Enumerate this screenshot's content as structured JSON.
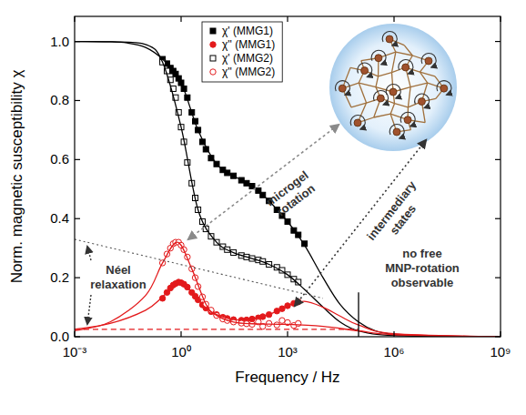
{
  "chart_data": {
    "type": "line",
    "xlabel": "Frequency / Hz",
    "ylabel": "Norm. magnetic susceptibility χ",
    "log": "x",
    "grid": false,
    "legend": "upper center",
    "xlim": [
      0.001,
      1000000000
    ],
    "ylim": [
      0,
      1.085
    ],
    "xticks": [
      {
        "value": 0.001,
        "label": "10⁻³"
      },
      {
        "value": 1,
        "label": "10⁰"
      },
      {
        "value": 1000,
        "label": "10³"
      },
      {
        "value": 1000000,
        "label": "10⁶"
      },
      {
        "value": 1000000000,
        "label": "10⁹"
      }
    ],
    "yticks": [
      {
        "value": 0,
        "label": "0.0"
      },
      0.2,
      0.4,
      0.6,
      0.8,
      {
        "value": 1,
        "label": "1.0"
      }
    ],
    "annotations": [
      {
        "lines": [
          "microgel",
          "rotation"
        ]
      },
      {
        "lines": [
          "intermediary",
          "states"
        ]
      },
      {
        "lines": [
          "Néel",
          "relaxation"
        ]
      },
      {
        "lines": [
          "no free",
          "MNP-rotation",
          "observable"
        ]
      }
    ],
    "series": [
      {
        "name": "χ' (MMG1)",
        "type": "scatter",
        "color": "#000000",
        "marker": "square",
        "x": [
          0.3,
          0.4,
          0.5,
          0.6,
          0.7,
          0.85,
          1,
          1.2,
          1.5,
          2,
          2.5,
          3,
          4,
          5,
          7,
          10,
          15,
          20,
          30,
          50,
          70,
          100,
          150,
          200,
          300,
          500,
          700,
          1000,
          1500,
          2000,
          3000
        ],
        "values": [
          0.94,
          0.925,
          0.91,
          0.9,
          0.89,
          0.875,
          0.86,
          0.84,
          0.81,
          0.76,
          0.73,
          0.7,
          0.66,
          0.635,
          0.605,
          0.585,
          0.565,
          0.555,
          0.545,
          0.53,
          0.52,
          0.51,
          0.495,
          0.48,
          0.46,
          0.43,
          0.41,
          0.39,
          0.36,
          0.345,
          0.315
        ]
      },
      {
        "name": "χ'' (MMG1)",
        "type": "scatter",
        "color": "#e31a1c",
        "marker": "circle",
        "x": [
          0.3,
          0.4,
          0.5,
          0.6,
          0.7,
          0.85,
          1,
          1.2,
          1.5,
          2,
          2.5,
          3,
          4,
          5,
          7,
          10,
          15,
          20,
          30,
          50,
          70,
          100,
          150,
          200,
          300,
          500,
          700,
          1000,
          1500,
          2000
        ],
        "values": [
          0.13,
          0.15,
          0.165,
          0.175,
          0.18,
          0.185,
          0.183,
          0.178,
          0.168,
          0.15,
          0.137,
          0.125,
          0.108,
          0.097,
          0.085,
          0.075,
          0.066,
          0.062,
          0.058,
          0.056,
          0.057,
          0.06,
          0.064,
          0.068,
          0.075,
          0.087,
          0.095,
          0.105,
          0.113,
          0.118
        ]
      },
      {
        "name": "χ' (MMG2)",
        "type": "scatter",
        "color": "#000000",
        "marker": "open-square",
        "x": [
          0.3,
          0.4,
          0.5,
          0.6,
          0.7,
          0.85,
          1,
          1.2,
          1.5,
          2,
          2.5,
          3,
          4,
          5,
          7,
          10,
          15,
          20,
          30,
          50,
          70,
          100,
          150,
          200,
          300,
          500,
          700,
          1000,
          1500,
          2000
        ],
        "values": [
          0.93,
          0.9,
          0.87,
          0.84,
          0.81,
          0.76,
          0.71,
          0.66,
          0.59,
          0.52,
          0.47,
          0.43,
          0.39,
          0.365,
          0.34,
          0.32,
          0.305,
          0.295,
          0.285,
          0.275,
          0.27,
          0.265,
          0.26,
          0.255,
          0.245,
          0.235,
          0.225,
          0.21,
          0.195,
          0.185
        ]
      },
      {
        "name": "χ'' (MMG2)",
        "type": "scatter",
        "color": "#e31a1c",
        "marker": "open-circle",
        "x": [
          0.3,
          0.4,
          0.5,
          0.6,
          0.7,
          0.85,
          1,
          1.2,
          1.5,
          2,
          2.5,
          3,
          4,
          5,
          7,
          10,
          15,
          20,
          30,
          50,
          70,
          100,
          150,
          200,
          300,
          500,
          700,
          1000,
          1500,
          2000
        ],
        "values": [
          0.25,
          0.28,
          0.3,
          0.315,
          0.32,
          0.32,
          0.31,
          0.295,
          0.27,
          0.23,
          0.2,
          0.17,
          0.135,
          0.11,
          0.09,
          0.072,
          0.06,
          0.055,
          0.05,
          0.046,
          0.044,
          0.042,
          0.05,
          0.035,
          0.045,
          0.04,
          0.055,
          0.048,
          0.038,
          0.045
        ]
      },
      {
        "type": "line",
        "color": "#000000",
        "line_style": "solid",
        "x": [
          0.001,
          0.01,
          0.03,
          0.1,
          0.3,
          1,
          3,
          10,
          30,
          100,
          300,
          1000,
          3000,
          10000,
          30000,
          100000,
          300000,
          1000000,
          10000000,
          1000000000
        ],
        "values": [
          1,
          0.999,
          0.995,
          0.98,
          0.94,
          0.86,
          0.7,
          0.585,
          0.545,
          0.51,
          0.46,
          0.39,
          0.31,
          0.2,
          0.11,
          0.05,
          0.02,
          0.008,
          0.001,
          0
        ]
      },
      {
        "type": "line",
        "color": "#000000",
        "line_style": "solid",
        "x": [
          0.001,
          0.01,
          0.1,
          0.3,
          1,
          3,
          10,
          30,
          100,
          300,
          1000,
          3000,
          10000,
          30000,
          100000,
          1000000,
          1000000000
        ],
        "values": [
          1,
          0.999,
          0.99,
          0.93,
          0.71,
          0.43,
          0.32,
          0.285,
          0.265,
          0.245,
          0.21,
          0.16,
          0.1,
          0.05,
          0.02,
          0.004,
          0
        ]
      },
      {
        "type": "line",
        "color": "#e31a1c",
        "line_style": "solid",
        "x": [
          0.001,
          0.01,
          0.1,
          0.3,
          0.85,
          2,
          5,
          10,
          30,
          100,
          300,
          1000,
          3000,
          10000,
          30000,
          100000,
          1000000,
          1000000000
        ],
        "values": [
          0.025,
          0.045,
          0.09,
          0.135,
          0.185,
          0.15,
          0.097,
          0.075,
          0.058,
          0.06,
          0.075,
          0.105,
          0.12,
          0.1,
          0.07,
          0.04,
          0.01,
          0
        ]
      },
      {
        "type": "line",
        "color": "#e31a1c",
        "line_style": "solid",
        "x": [
          0.001,
          0.01,
          0.1,
          0.3,
          0.8,
          2,
          5,
          10,
          30,
          100,
          1000,
          10000,
          100000,
          1000000,
          1000000000
        ],
        "values": [
          0.02,
          0.05,
          0.14,
          0.25,
          0.32,
          0.23,
          0.11,
          0.072,
          0.05,
          0.044,
          0.042,
          0.035,
          0.02,
          0.007,
          0
        ]
      },
      {
        "type": "line",
        "color": "#555555",
        "line_style": "dotted",
        "x": [
          0.001,
          10000
        ],
        "values": [
          0.33,
          0.13
        ]
      },
      {
        "type": "line",
        "color": "#e31a1c",
        "line_style": "dashed",
        "x": [
          0.001,
          100000
        ],
        "values": [
          0.025,
          0.025
        ]
      },
      {
        "type": "line",
        "color": "#000000",
        "line_style": "solid",
        "x": [
          100000,
          100000
        ],
        "values": [
          0,
          0.15
        ]
      }
    ]
  }
}
